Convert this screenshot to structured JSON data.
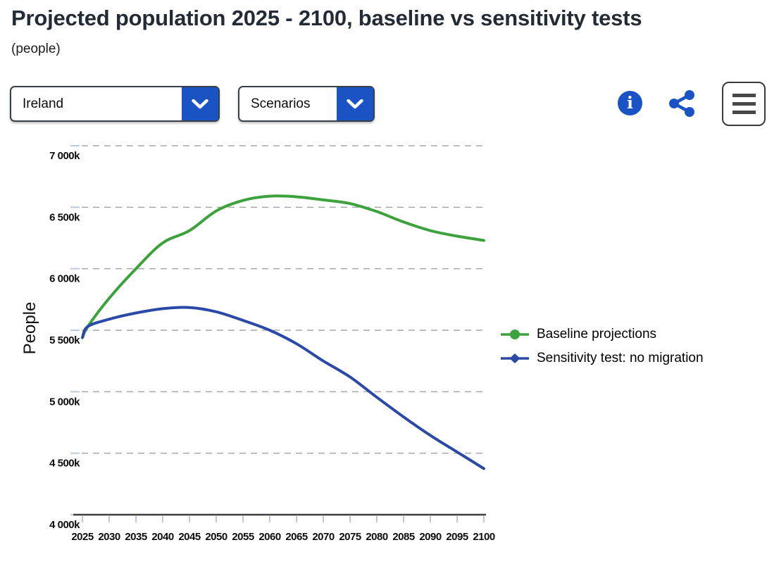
{
  "header": {
    "title": "Projected population 2025 - 2100, baseline vs sensitivity tests",
    "subtitle": "(people)"
  },
  "controls": {
    "country_dropdown": {
      "value": "Ireland"
    },
    "scenarios_dropdown": {
      "label": "Scenarios"
    },
    "info_button": {
      "glyph": "i"
    }
  },
  "colors": {
    "ui_blue": "#1a53c4",
    "baseline_green": "#3ca23c",
    "sensitivity_blue": "#2b4aa8",
    "title_text": "#232b36",
    "gridline": "#a8a8a8",
    "axis_line": "#3f3f3f",
    "tick_mark": "#bec9da"
  },
  "chart_data": {
    "type": "line",
    "title": "Projected population 2025 - 2100, baseline vs sensitivity tests",
    "subtitle": "(people)",
    "unit": "thousands of people (k)",
    "xlabel": "",
    "ylabel": "People",
    "grid": "dashed horizontal gridlines",
    "legend_position": "right",
    "ylim": [
      4000,
      7000
    ],
    "xlim": [
      2025,
      2100
    ],
    "x": [
      2025,
      2026,
      2030,
      2035,
      2040,
      2045,
      2050,
      2055,
      2060,
      2065,
      2070,
      2075,
      2080,
      2085,
      2090,
      2095,
      2100
    ],
    "xticks": [
      2025,
      2030,
      2035,
      2040,
      2045,
      2050,
      2055,
      2060,
      2065,
      2070,
      2075,
      2080,
      2085,
      2090,
      2095,
      2100
    ],
    "yticks": [
      {
        "value": 7000,
        "label": "7 000k"
      },
      {
        "value": 6500,
        "label": "6 500k"
      },
      {
        "value": 6000,
        "label": "6 000k"
      },
      {
        "value": 5500,
        "label": "5 500k"
      },
      {
        "value": 5000,
        "label": "5 000k"
      },
      {
        "value": 4500,
        "label": "4 500k"
      },
      {
        "value": 4000,
        "label": "4 000k"
      }
    ],
    "series": [
      {
        "name": "Baseline projections",
        "marker": "circle",
        "color": "#3ca23c",
        "values": [
          5440,
          5530,
          5760,
          6000,
          6210,
          6310,
          6470,
          6555,
          6590,
          6585,
          6560,
          6530,
          6465,
          6380,
          6310,
          6265,
          6230
        ]
      },
      {
        "name": "Sensitivity test: no migration",
        "marker": "diamond",
        "color": "#2b4aa8",
        "values": [
          5440,
          5530,
          5590,
          5640,
          5675,
          5685,
          5650,
          5580,
          5500,
          5390,
          5250,
          5120,
          4955,
          4795,
          4645,
          4510,
          4375
        ]
      }
    ]
  }
}
